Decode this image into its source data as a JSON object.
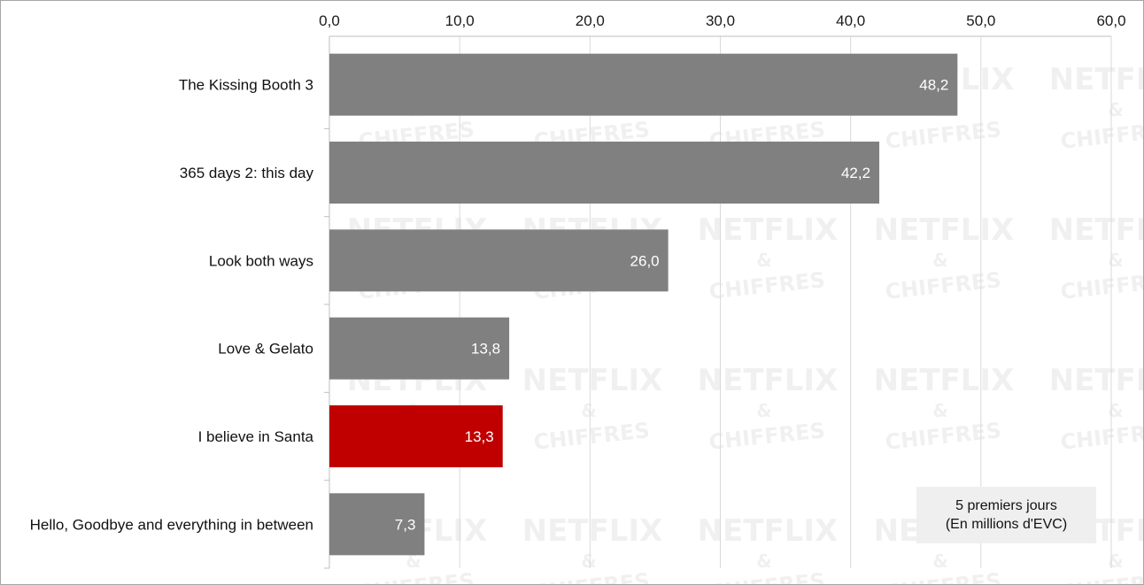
{
  "colors": {
    "default_bar": "#808080",
    "highlight_bar": "#c00000",
    "gridline": "#d9d9d9",
    "axis": "#bfbfbf"
  },
  "watermark": {
    "line1": "NETFLIX",
    "line2": "&",
    "line3": "CHIFFRES"
  },
  "note": {
    "line1": "5 premiers jours",
    "line2": "(En millions d'EVC)"
  },
  "chart_data": {
    "type": "bar",
    "orientation": "horizontal",
    "categories": [
      "The Kissing Booth 3",
      "365 days 2: this day",
      "Look both ways",
      "Love & Gelato",
      "I believe in Santa",
      "Hello, Goodbye and everything in between"
    ],
    "values": [
      48.2,
      42.2,
      26.0,
      13.8,
      13.3,
      7.3
    ],
    "value_labels": [
      "48,2",
      "42,2",
      "26,0",
      "13,8",
      "13,3",
      "7,3"
    ],
    "highlighted_category": "I believe in Santa",
    "xlim": [
      0,
      60
    ],
    "xticks": [
      0,
      10,
      20,
      30,
      40,
      50,
      60
    ],
    "xtick_labels": [
      "0,0",
      "10,0",
      "20,0",
      "30,0",
      "40,0",
      "50,0",
      "60,0"
    ],
    "x_axis_position": "top",
    "grid": true,
    "title": "",
    "xlabel": "",
    "ylabel": ""
  }
}
